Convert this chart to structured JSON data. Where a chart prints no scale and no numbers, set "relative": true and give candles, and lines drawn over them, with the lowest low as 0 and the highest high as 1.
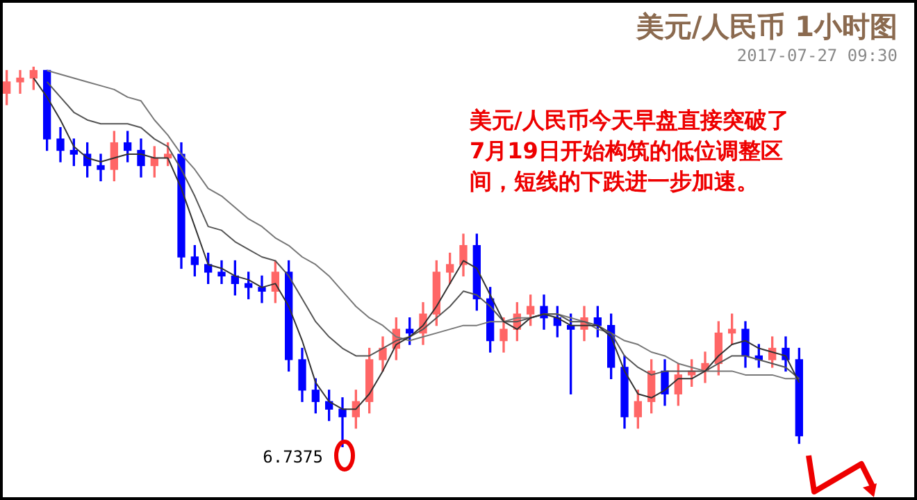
{
  "chart_data": {
    "type": "candlestick",
    "relative": true,
    "title": "美元/人民币 1小时图",
    "subtitle": "2017-07-27 09:30",
    "annotations": [
      "美元/人民币今天早盘直接突破了7月19日开始构筑的低位调整区间，短线的下跌进一步加速。",
      "6.7375"
    ],
    "categories": [
      null,
      null,
      null,
      null,
      null,
      null,
      null,
      null,
      null,
      null,
      null,
      null,
      null,
      null,
      null,
      null,
      null,
      null,
      null,
      null,
      null,
      null,
      null,
      null,
      null,
      null,
      null,
      null,
      null,
      null,
      null,
      null,
      null,
      null,
      null,
      null,
      null,
      null,
      null,
      null,
      null,
      null,
      null,
      null,
      null,
      null,
      null,
      null,
      null,
      null,
      null,
      null,
      null,
      null,
      null,
      null,
      null,
      null,
      null,
      null
    ],
    "ohlc": [
      [
        0.93,
        0.99,
        0.9,
        0.96
      ],
      [
        0.96,
        0.99,
        0.93,
        0.97
      ],
      [
        0.97,
        1.0,
        0.94,
        0.99
      ],
      [
        0.99,
        0.99,
        0.78,
        0.81
      ],
      [
        0.81,
        0.84,
        0.75,
        0.78
      ],
      [
        0.78,
        0.81,
        0.74,
        0.77
      ],
      [
        0.77,
        0.8,
        0.71,
        0.74
      ],
      [
        0.74,
        0.77,
        0.7,
        0.73
      ],
      [
        0.73,
        0.83,
        0.7,
        0.8
      ],
      [
        0.8,
        0.83,
        0.75,
        0.78
      ],
      [
        0.78,
        0.81,
        0.71,
        0.74
      ],
      [
        0.74,
        0.79,
        0.71,
        0.76
      ],
      [
        0.76,
        0.8,
        0.74,
        0.77
      ],
      [
        0.77,
        0.8,
        0.47,
        0.5
      ],
      [
        0.5,
        0.53,
        0.45,
        0.48
      ],
      [
        0.48,
        0.51,
        0.43,
        0.46
      ],
      [
        0.46,
        0.49,
        0.43,
        0.45
      ],
      [
        0.45,
        0.49,
        0.4,
        0.43
      ],
      [
        0.43,
        0.46,
        0.39,
        0.42
      ],
      [
        0.42,
        0.45,
        0.38,
        0.41
      ],
      [
        0.41,
        0.49,
        0.38,
        0.46
      ],
      [
        0.46,
        0.49,
        0.2,
        0.23
      ],
      [
        0.23,
        0.26,
        0.12,
        0.15
      ],
      [
        0.15,
        0.18,
        0.09,
        0.12
      ],
      [
        0.12,
        0.15,
        0.07,
        0.1
      ],
      [
        0.1,
        0.13,
        0,
        0.08
      ],
      [
        0.08,
        0.15,
        0.05,
        0.12
      ],
      [
        0.12,
        0.26,
        0.09,
        0.23
      ],
      [
        0.23,
        0.29,
        0.2,
        0.26
      ],
      [
        0.26,
        0.34,
        0.23,
        0.31
      ],
      [
        0.31,
        0.34,
        0.27,
        0.3
      ],
      [
        0.3,
        0.38,
        0.27,
        0.35
      ],
      [
        0.35,
        0.49,
        0.32,
        0.46
      ],
      [
        0.46,
        0.51,
        0.43,
        0.48
      ],
      [
        0.48,
        0.56,
        0.45,
        0.53
      ],
      [
        0.53,
        0.56,
        0.36,
        0.39
      ],
      [
        0.39,
        0.42,
        0.25,
        0.28
      ],
      [
        0.28,
        0.34,
        0.25,
        0.31
      ],
      [
        0.31,
        0.38,
        0.28,
        0.35
      ],
      [
        0.35,
        0.4,
        0.32,
        0.37
      ],
      [
        0.37,
        0.4,
        0.31,
        0.34
      ],
      [
        0.34,
        0.37,
        0.29,
        0.32
      ],
      [
        0.32,
        0.35,
        0.14,
        0.31
      ],
      [
        0.31,
        0.37,
        0.28,
        0.34
      ],
      [
        0.34,
        0.37,
        0.29,
        0.32
      ],
      [
        0.32,
        0.35,
        0.18,
        0.21
      ],
      [
        0.21,
        0.24,
        0.05,
        0.08
      ],
      [
        0.08,
        0.15,
        0.05,
        0.12
      ],
      [
        0.12,
        0.23,
        0.09,
        0.2
      ],
      [
        0.2,
        0.23,
        0.11,
        0.14
      ],
      [
        0.14,
        0.22,
        0.11,
        0.19
      ],
      [
        0.19,
        0.23,
        0.16,
        0.2
      ],
      [
        0.2,
        0.25,
        0.17,
        0.22
      ],
      [
        0.22,
        0.33,
        0.19,
        0.3
      ],
      [
        0.3,
        0.35,
        0.27,
        0.31
      ],
      [
        0.31,
        0.33,
        0.21,
        0.24
      ],
      [
        0.24,
        0.27,
        0.21,
        0.23
      ],
      [
        0.23,
        0.29,
        0.21,
        0.26
      ],
      [
        0.26,
        0.29,
        0.2,
        0.23
      ],
      [
        0.23,
        0.26,
        0.01,
        0.03
      ]
    ],
    "colors": [
      "#ff6666",
      "#ff6666",
      "#ff6666",
      "#0000ff",
      "#0000ff",
      "#0000ff",
      "#0000ff",
      "#0000ff",
      "#ff6666",
      "#0000ff",
      "#0000ff",
      "#ff6666",
      "#ff6666",
      "#0000ff",
      "#0000ff",
      "#0000ff",
      "#0000ff",
      "#0000ff",
      "#0000ff",
      "#0000ff",
      "#ff6666",
      "#0000ff",
      "#0000ff",
      "#0000ff",
      "#0000ff",
      "#0000ff",
      "#ff6666",
      "#ff6666",
      "#ff6666",
      "#ff6666",
      "#0000ff",
      "#ff6666",
      "#ff6666",
      "#ff6666",
      "#ff6666",
      "#0000ff",
      "#0000ff",
      "#ff6666",
      "#ff6666",
      "#ff6666",
      "#0000ff",
      "#0000ff",
      "#0000ff",
      "#ff6666",
      "#0000ff",
      "#0000ff",
      "#0000ff",
      "#ff6666",
      "#ff6666",
      "#0000ff",
      "#ff6666",
      "#ff6666",
      "#ff6666",
      "#ff6666",
      "#ff6666",
      "#0000ff",
      "#0000ff",
      "#ff6666",
      "#0000ff",
      "#0000ff"
    ],
    "series": [
      {
        "type": "line",
        "color": "#333333",
        "values": [
          null,
          null,
          0.97,
          0.92,
          0.86,
          0.79,
          0.76,
          0.75,
          0.76,
          0.77,
          0.77,
          0.76,
          0.76,
          0.68,
          0.58,
          0.48,
          0.47,
          0.45,
          0.44,
          0.42,
          0.43,
          0.37,
          0.28,
          0.17,
          0.12,
          0.1,
          0.1,
          0.14,
          0.2,
          0.27,
          0.29,
          0.32,
          0.37,
          0.43,
          0.49,
          0.47,
          0.4,
          0.33,
          0.31,
          0.34,
          0.35,
          0.34,
          0.32,
          0.32,
          0.32,
          0.29,
          0.2,
          0.14,
          0.13,
          0.15,
          0.18,
          0.18,
          0.2,
          0.24,
          0.27,
          0.28,
          0.26,
          0.25,
          0.24,
          0.17
        ]
      },
      {
        "type": "line",
        "color": "#555555",
        "values": [
          null,
          null,
          null,
          0.96,
          0.92,
          0.88,
          0.86,
          0.85,
          0.85,
          0.85,
          0.84,
          0.81,
          0.79,
          0.73,
          0.66,
          0.58,
          0.57,
          0.54,
          0.52,
          0.5,
          0.49,
          0.45,
          0.39,
          0.33,
          0.29,
          0.26,
          0.24,
          0.24,
          0.26,
          0.28,
          0.29,
          0.31,
          0.34,
          0.37,
          0.41,
          0.4,
          0.37,
          0.33,
          0.33,
          0.34,
          0.35,
          0.35,
          0.33,
          0.33,
          0.32,
          0.3,
          0.24,
          0.21,
          0.19,
          0.2,
          0.2,
          0.2,
          0.2,
          0.22,
          0.24,
          0.24,
          0.23,
          0.22,
          0.21,
          0.18
        ]
      },
      {
        "type": "line",
        "color": "#777777",
        "values": [
          null,
          null,
          null,
          0.99,
          0.98,
          0.97,
          0.96,
          0.95,
          0.94,
          0.92,
          0.91,
          0.86,
          0.82,
          0.77,
          0.73,
          0.68,
          0.66,
          0.63,
          0.6,
          0.58,
          0.55,
          0.53,
          0.5,
          0.48,
          0.45,
          0.41,
          0.37,
          0.34,
          0.32,
          0.29,
          0.28,
          0.29,
          0.3,
          0.31,
          0.32,
          0.32,
          0.33,
          0.33,
          0.34,
          0.34,
          0.35,
          0.35,
          0.34,
          0.33,
          0.31,
          0.3,
          0.28,
          0.27,
          0.25,
          0.24,
          0.22,
          0.21,
          0.2,
          0.2,
          0.2,
          0.19,
          0.19,
          0.19,
          0.18,
          0.18
        ]
      }
    ]
  }
}
